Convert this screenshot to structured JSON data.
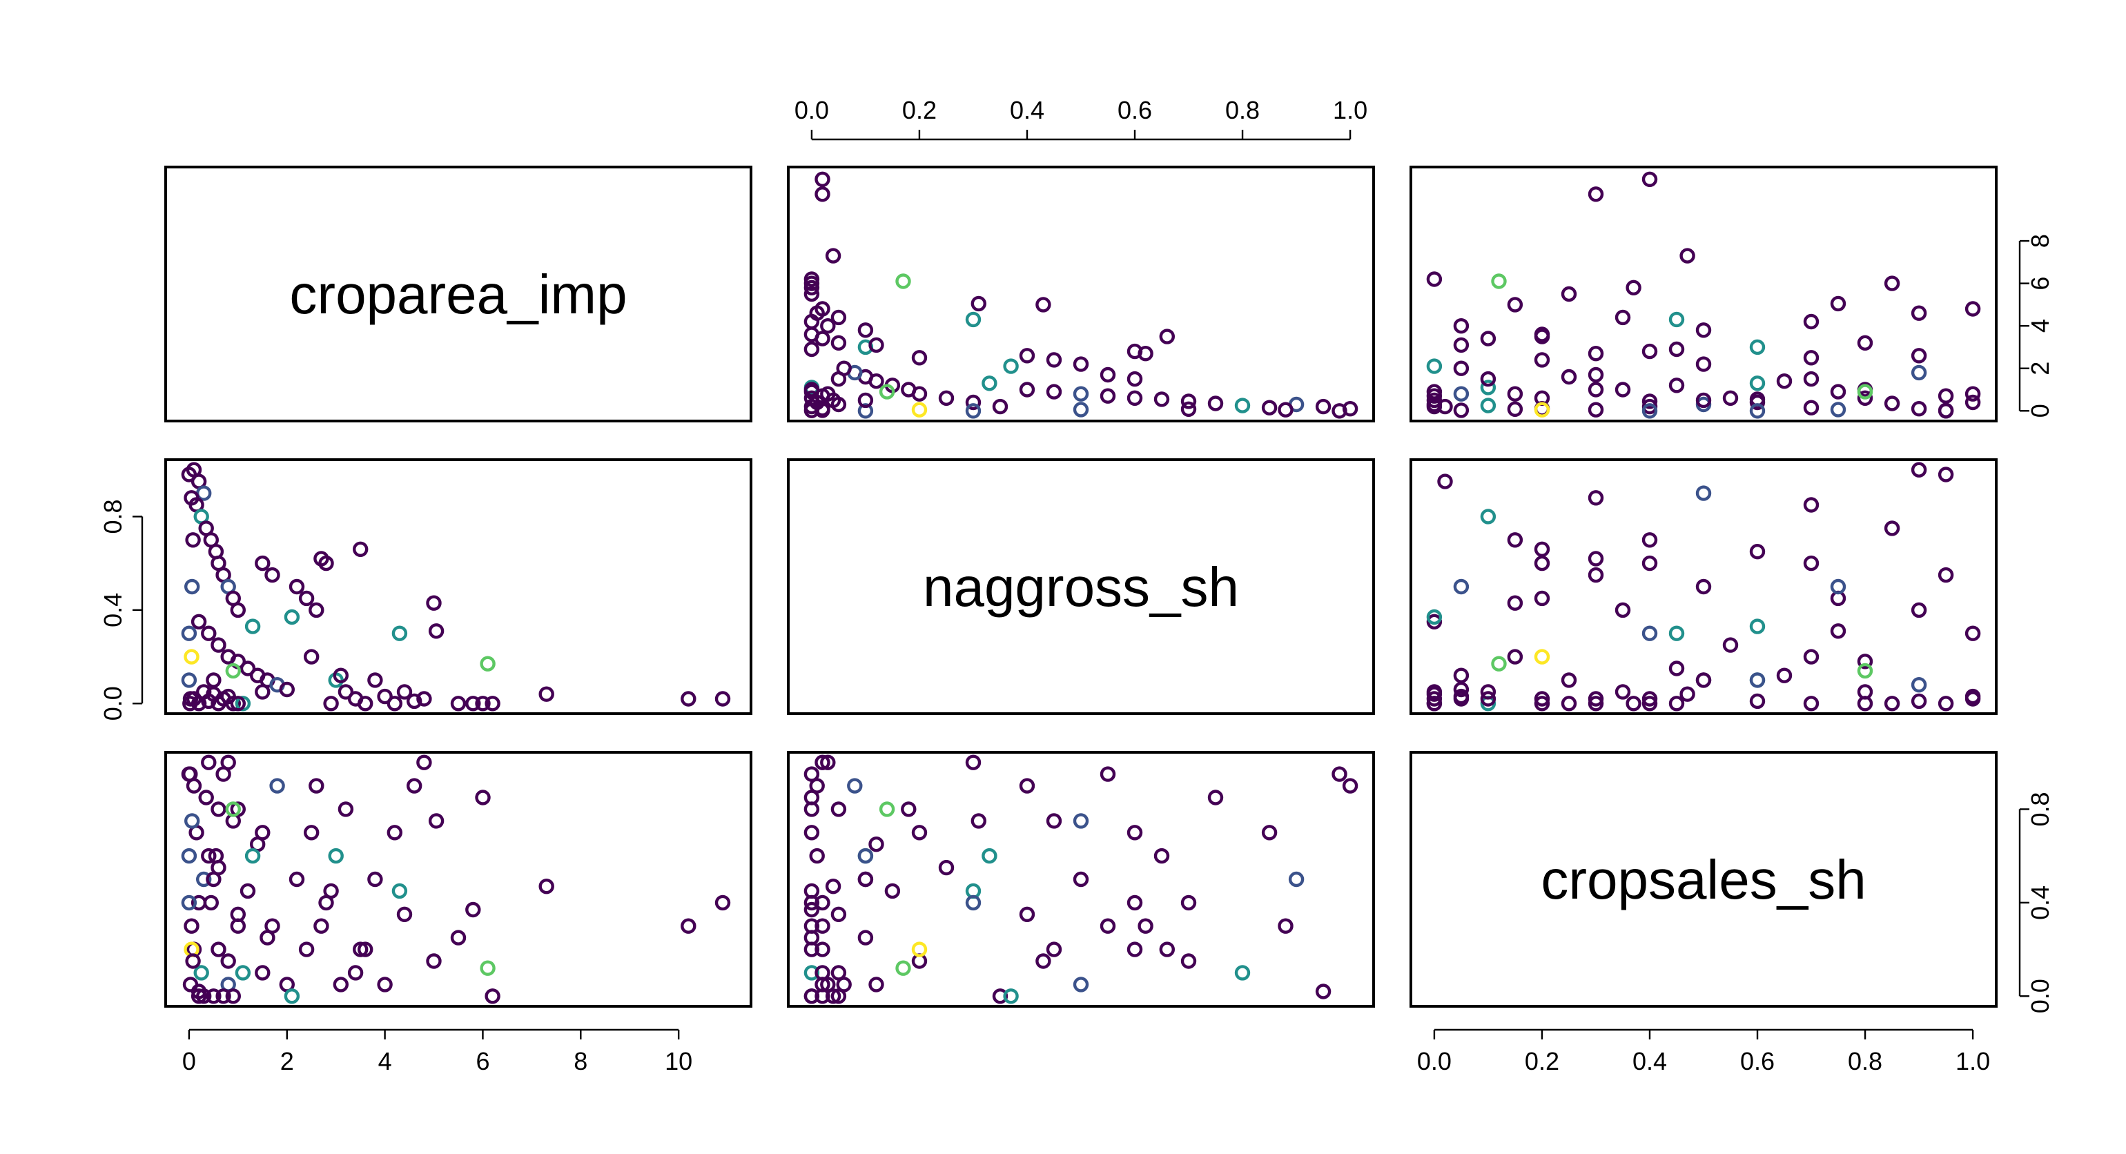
{
  "chart_data": {
    "type": "scatter",
    "variables": [
      {
        "name": "croparea_imp",
        "range": [
          0,
          11
        ],
        "ticks": [
          "0",
          "2",
          "4",
          "6",
          "8",
          "10"
        ],
        "tick_values": [
          0,
          2,
          4,
          6,
          8,
          10
        ]
      },
      {
        "name": "naggross_sh",
        "range": [
          0,
          1
        ],
        "ticks": [
          "0.0",
          "0.2",
          "0.4",
          "0.6",
          "0.8",
          "1.0"
        ],
        "tick_values": [
          0,
          0.2,
          0.4,
          0.6,
          0.8,
          1.0
        ]
      },
      {
        "name": "cropsales_sh",
        "range": [
          0,
          1
        ],
        "ticks": [
          "0.0",
          "0.2",
          "0.4",
          "0.6",
          "0.8",
          "1.0"
        ],
        "tick_values": [
          0,
          0.2,
          0.4,
          0.6,
          0.8,
          1.0
        ]
      }
    ],
    "left_ticks": {
      "naggross_sh": [
        "0.0",
        "0.4",
        "0.8"
      ],
      "naggross_sh_values": [
        0,
        0.4,
        0.8
      ]
    },
    "right_ticks": {
      "croparea_imp": [
        "0",
        "2",
        "4",
        "6",
        "8"
      ],
      "croparea_imp_values": [
        0,
        2,
        4,
        6,
        8
      ],
      "cropsales_sh": [
        "0.0",
        "0.4",
        "0.8"
      ],
      "cropsales_sh_values": [
        0,
        0.4,
        0.8
      ]
    },
    "color_palette": [
      "#440154",
      "#3b528b",
      "#21908c",
      "#5dc863",
      "#fde725"
    ],
    "points": [
      [
        0.0,
        0.98,
        0.95
      ],
      [
        0.1,
        1.0,
        0.9
      ],
      [
        0.2,
        0.95,
        0.02
      ],
      [
        0.3,
        0.9,
        0.5
      ],
      [
        0.05,
        0.88,
        0.3
      ],
      [
        0.15,
        0.85,
        0.7
      ],
      [
        0.25,
        0.8,
        0.1
      ],
      [
        0.35,
        0.75,
        0.85
      ],
      [
        0.45,
        0.7,
        0.4
      ],
      [
        0.55,
        0.65,
        0.6
      ],
      [
        0.6,
        0.6,
        0.2
      ],
      [
        0.7,
        0.55,
        0.95
      ],
      [
        0.8,
        0.5,
        0.05
      ],
      [
        0.9,
        0.45,
        0.75
      ],
      [
        1.0,
        0.4,
        0.35
      ],
      [
        0.2,
        0.35,
        0.0
      ],
      [
        0.4,
        0.3,
        1.0
      ],
      [
        0.6,
        0.25,
        0.55
      ],
      [
        0.8,
        0.2,
        0.15
      ],
      [
        1.0,
        0.18,
        0.8
      ],
      [
        1.2,
        0.15,
        0.45
      ],
      [
        1.4,
        0.12,
        0.65
      ],
      [
        1.6,
        0.1,
        0.25
      ],
      [
        1.8,
        0.08,
        0.9
      ],
      [
        2.0,
        0.06,
        0.05
      ],
      [
        0.3,
        0.05,
        0.0
      ],
      [
        0.5,
        0.04,
        0.0
      ],
      [
        0.7,
        0.02,
        0.0
      ],
      [
        0.9,
        0.0,
        0.0
      ],
      [
        1.1,
        0.0,
        0.1
      ],
      [
        0.1,
        0.02,
        0.2
      ],
      [
        0.2,
        0.0,
        0.4
      ],
      [
        0.4,
        0.01,
        0.6
      ],
      [
        0.6,
        0.0,
        0.8
      ],
      [
        0.8,
        0.03,
        1.0
      ],
      [
        1.5,
        0.6,
        0.7
      ],
      [
        1.7,
        0.55,
        0.3
      ],
      [
        2.2,
        0.5,
        0.5
      ],
      [
        2.4,
        0.45,
        0.2
      ],
      [
        2.6,
        0.4,
        0.9
      ],
      [
        2.8,
        0.6,
        0.4
      ],
      [
        2.7,
        0.62,
        0.3
      ],
      [
        3.0,
        0.1,
        0.6
      ],
      [
        3.2,
        0.05,
        0.8
      ],
      [
        3.4,
        0.02,
        0.1
      ],
      [
        3.6,
        0.0,
        0.2
      ],
      [
        3.8,
        0.1,
        0.5
      ],
      [
        4.0,
        0.03,
        0.05
      ],
      [
        4.2,
        0.0,
        0.7
      ],
      [
        4.4,
        0.05,
        0.35
      ],
      [
        4.6,
        0.01,
        0.9
      ],
      [
        4.8,
        0.02,
        1.0
      ],
      [
        5.0,
        0.43,
        0.15
      ],
      [
        5.05,
        0.31,
        0.75
      ],
      [
        5.5,
        0.0,
        0.25
      ],
      [
        5.8,
        0.0,
        0.37
      ],
      [
        6.0,
        0.0,
        0.85
      ],
      [
        6.1,
        0.17,
        0.12
      ],
      [
        6.2,
        0.0,
        0.0
      ],
      [
        7.3,
        0.04,
        0.47
      ],
      [
        10.2,
        0.02,
        0.3
      ],
      [
        10.9,
        0.02,
        0.4
      ],
      [
        3.5,
        0.66,
        0.2
      ],
      [
        4.3,
        0.3,
        0.45
      ],
      [
        3.1,
        0.12,
        0.05
      ],
      [
        2.1,
        0.37,
        0.0
      ],
      [
        0.9,
        0.14,
        0.8
      ],
      [
        1.3,
        0.33,
        0.6
      ],
      [
        0.0,
        0.3,
        0.4
      ],
      [
        0.05,
        0.2,
        0.2
      ],
      [
        0.0,
        0.1,
        0.6
      ],
      [
        0.02,
        0.0,
        0.95
      ],
      [
        0.03,
        0.02,
        0.05
      ],
      [
        0.06,
        0.5,
        0.75
      ],
      [
        0.08,
        0.7,
        0.15
      ],
      [
        0.5,
        0.1,
        0.5
      ],
      [
        1.0,
        0.0,
        0.3
      ],
      [
        1.5,
        0.05,
        0.1
      ],
      [
        2.5,
        0.2,
        0.7
      ],
      [
        2.9,
        0.0,
        0.45
      ]
    ],
    "point_colors": [
      0,
      0,
      0,
      1,
      0,
      0,
      2,
      0,
      0,
      0,
      0,
      0,
      1,
      0,
      0,
      0,
      0,
      0,
      0,
      0,
      0,
      0,
      0,
      1,
      0,
      0,
      0,
      0,
      0,
      2,
      0,
      0,
      0,
      0,
      0,
      0,
      0,
      0,
      0,
      0,
      0,
      0,
      2,
      0,
      0,
      0,
      0,
      0,
      0,
      0,
      0,
      0,
      0,
      0,
      0,
      0,
      0,
      3,
      0,
      0,
      0,
      0,
      0,
      2,
      0,
      2,
      3,
      2,
      1,
      4,
      1,
      0,
      0,
      1,
      0,
      0,
      0,
      0,
      0,
      0
    ],
    "xlabel": "",
    "ylabel": "",
    "title": "",
    "grid": false,
    "legend": "none"
  }
}
